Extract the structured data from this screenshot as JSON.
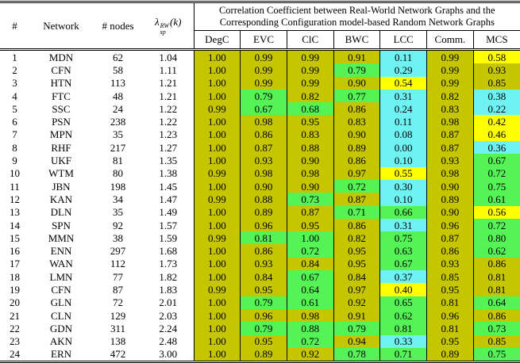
{
  "header": {
    "col_hash": "#",
    "col_network": "Network",
    "col_nodes": "# nodes",
    "lambda": {
      "symbol": "λ",
      "sup": "RW",
      "sub": "sp",
      "arg": "(k)"
    },
    "group_title_line1": "Correlation Coefficient between Real-World Network Graphs and the",
    "group_title_line2": "Corresponding Configuration model-based Random Network Graphs",
    "metrics": [
      "DegC",
      "EVC",
      "ClC",
      "BWC",
      "LCC",
      "Comm.",
      "MCS"
    ]
  },
  "palette": {
    "olive": "#c6c600",
    "green": "#55f355",
    "yellow": "#ffff00",
    "cyan": "#6ef2f2"
  },
  "chart_data": {
    "type": "table",
    "title": "Correlation Coefficient between Real-World Network Graphs and the Corresponding Configuration model-based Random Network Graphs",
    "columns": [
      "#",
      "Network",
      "# nodes",
      "λsp RW (k)",
      "DegC",
      "EVC",
      "ClC",
      "BWC",
      "LCC",
      "Comm.",
      "MCS"
    ],
    "rows": [
      {
        "num": "1",
        "network": "MDN",
        "nodes": "62",
        "lambda": "1.04",
        "values": [
          "1.00",
          "0.99",
          "0.99",
          "0.91",
          "0.11",
          "0.99",
          "0.58"
        ],
        "colors": [
          "olive",
          "olive",
          "olive",
          "olive",
          "cyan",
          "olive",
          "yellow"
        ]
      },
      {
        "num": "2",
        "network": "CFN",
        "nodes": "58",
        "lambda": "1.11",
        "values": [
          "1.00",
          "0.99",
          "0.99",
          "0.79",
          "0.29",
          "0.99",
          "0.93"
        ],
        "colors": [
          "olive",
          "olive",
          "olive",
          "green",
          "cyan",
          "olive",
          "olive"
        ]
      },
      {
        "num": "3",
        "network": "HTN",
        "nodes": "113",
        "lambda": "1.21",
        "values": [
          "1.00",
          "0.99",
          "0.99",
          "0.90",
          "0.54",
          "0.99",
          "0.85"
        ],
        "colors": [
          "olive",
          "olive",
          "olive",
          "olive",
          "yellow",
          "olive",
          "olive"
        ]
      },
      {
        "num": "4",
        "network": "FTC",
        "nodes": "48",
        "lambda": "1.21",
        "values": [
          "1.00",
          "0.79",
          "0.82",
          "0.77",
          "0.31",
          "0.82",
          "0.38"
        ],
        "colors": [
          "olive",
          "green",
          "olive",
          "green",
          "cyan",
          "olive",
          "cyan"
        ]
      },
      {
        "num": "5",
        "network": "SSC",
        "nodes": "24",
        "lambda": "1.22",
        "values": [
          "0.99",
          "0.67",
          "0.68",
          "0.86",
          "0.24",
          "0.83",
          "0.22"
        ],
        "colors": [
          "olive",
          "green",
          "green",
          "olive",
          "cyan",
          "olive",
          "cyan"
        ]
      },
      {
        "num": "6",
        "network": "PSN",
        "nodes": "238",
        "lambda": "1.22",
        "values": [
          "1.00",
          "0.98",
          "0.95",
          "0.83",
          "0.11",
          "0.98",
          "0.42"
        ],
        "colors": [
          "olive",
          "olive",
          "olive",
          "olive",
          "cyan",
          "olive",
          "yellow"
        ]
      },
      {
        "num": "7",
        "network": "MPN",
        "nodes": "35",
        "lambda": "1.23",
        "values": [
          "1.00",
          "0.86",
          "0.83",
          "0.90",
          "0.08",
          "0.87",
          "0.46"
        ],
        "colors": [
          "olive",
          "olive",
          "olive",
          "olive",
          "cyan",
          "olive",
          "yellow"
        ]
      },
      {
        "num": "8",
        "network": "RHF",
        "nodes": "217",
        "lambda": "1.27",
        "values": [
          "1.00",
          "0.87",
          "0.88",
          "0.89",
          "0.00",
          "0.87",
          "0.36"
        ],
        "colors": [
          "olive",
          "olive",
          "olive",
          "olive",
          "cyan",
          "olive",
          "cyan"
        ]
      },
      {
        "num": "9",
        "network": "UKF",
        "nodes": "81",
        "lambda": "1.35",
        "values": [
          "1.00",
          "0.93",
          "0.90",
          "0.86",
          "0.10",
          "0.93",
          "0.67"
        ],
        "colors": [
          "olive",
          "olive",
          "olive",
          "olive",
          "cyan",
          "olive",
          "green"
        ]
      },
      {
        "num": "10",
        "network": "WTM",
        "nodes": "80",
        "lambda": "1.38",
        "values": [
          "0.99",
          "0.98",
          "0.98",
          "0.97",
          "0.55",
          "0.98",
          "0.72"
        ],
        "colors": [
          "olive",
          "olive",
          "olive",
          "olive",
          "yellow",
          "olive",
          "green"
        ]
      },
      {
        "num": "11",
        "network": "JBN",
        "nodes": "198",
        "lambda": "1.45",
        "values": [
          "1.00",
          "0.90",
          "0.90",
          "0.72",
          "0.30",
          "0.90",
          "0.75"
        ],
        "colors": [
          "olive",
          "olive",
          "olive",
          "green",
          "cyan",
          "olive",
          "green"
        ]
      },
      {
        "num": "12",
        "network": "KAN",
        "nodes": "34",
        "lambda": "1.47",
        "values": [
          "0.99",
          "0.88",
          "0.73",
          "0.87",
          "0.10",
          "0.89",
          "0.61"
        ],
        "colors": [
          "olive",
          "olive",
          "green",
          "olive",
          "cyan",
          "olive",
          "green"
        ]
      },
      {
        "num": "13",
        "network": "DLN",
        "nodes": "35",
        "lambda": "1.49",
        "values": [
          "1.00",
          "0.89",
          "0.87",
          "0.71",
          "0.66",
          "0.90",
          "0.56"
        ],
        "colors": [
          "olive",
          "olive",
          "olive",
          "green",
          "green",
          "olive",
          "yellow"
        ]
      },
      {
        "num": "14",
        "network": "SPN",
        "nodes": "92",
        "lambda": "1.57",
        "values": [
          "1.00",
          "0.96",
          "0.95",
          "0.86",
          "0.31",
          "0.96",
          "0.72"
        ],
        "colors": [
          "olive",
          "olive",
          "olive",
          "olive",
          "cyan",
          "olive",
          "green"
        ]
      },
      {
        "num": "15",
        "network": "MMN",
        "nodes": "38",
        "lambda": "1.59",
        "values": [
          "0.99",
          "0.81",
          "1.00",
          "0.82",
          "0.75",
          "0.87",
          "0.80"
        ],
        "colors": [
          "olive",
          "green",
          "green",
          "olive",
          "green",
          "olive",
          "green"
        ]
      },
      {
        "num": "16",
        "network": "ENN",
        "nodes": "297",
        "lambda": "1.68",
        "values": [
          "1.00",
          "0.86",
          "0.72",
          "0.95",
          "0.63",
          "0.86",
          "0.62"
        ],
        "colors": [
          "olive",
          "olive",
          "green",
          "olive",
          "green",
          "olive",
          "green"
        ]
      },
      {
        "num": "17",
        "network": "WAN",
        "nodes": "112",
        "lambda": "1.73",
        "values": [
          "1.00",
          "0.93",
          "0.84",
          "0.95",
          "0.67",
          "0.93",
          "0.86"
        ],
        "colors": [
          "olive",
          "olive",
          "olive",
          "olive",
          "green",
          "olive",
          "olive"
        ]
      },
      {
        "num": "18",
        "network": "LMN",
        "nodes": "77",
        "lambda": "1.82",
        "values": [
          "1.00",
          "0.84",
          "0.67",
          "0.84",
          "0.37",
          "0.85",
          "0.81"
        ],
        "colors": [
          "olive",
          "olive",
          "green",
          "olive",
          "cyan",
          "olive",
          "olive"
        ]
      },
      {
        "num": "19",
        "network": "CFN",
        "nodes": "87",
        "lambda": "1.83",
        "values": [
          "0.99",
          "0.95",
          "0.64",
          "0.97",
          "0.40",
          "0.95",
          "0.81"
        ],
        "colors": [
          "olive",
          "olive",
          "green",
          "olive",
          "yellow",
          "olive",
          "olive"
        ]
      },
      {
        "num": "20",
        "network": "GLN",
        "nodes": "72",
        "lambda": "2.01",
        "values": [
          "1.00",
          "0.79",
          "0.61",
          "0.92",
          "0.65",
          "0.81",
          "0.64"
        ],
        "colors": [
          "olive",
          "green",
          "green",
          "olive",
          "green",
          "olive",
          "green"
        ]
      },
      {
        "num": "21",
        "network": "CLN",
        "nodes": "129",
        "lambda": "2.03",
        "values": [
          "1.00",
          "0.96",
          "0.98",
          "0.91",
          "0.62",
          "0.96",
          "0.86"
        ],
        "colors": [
          "olive",
          "olive",
          "olive",
          "olive",
          "green",
          "olive",
          "olive"
        ]
      },
      {
        "num": "22",
        "network": "GDN",
        "nodes": "311",
        "lambda": "2.24",
        "values": [
          "1.00",
          "0.79",
          "0.88",
          "0.79",
          "0.81",
          "0.81",
          "0.73"
        ],
        "colors": [
          "olive",
          "green",
          "green",
          "green",
          "green",
          "olive",
          "green"
        ]
      },
      {
        "num": "23",
        "network": "AKN",
        "nodes": "138",
        "lambda": "2.48",
        "values": [
          "1.00",
          "0.95",
          "0.72",
          "0.94",
          "0.33",
          "0.95",
          "0.85"
        ],
        "colors": [
          "olive",
          "olive",
          "green",
          "olive",
          "cyan",
          "olive",
          "olive"
        ]
      },
      {
        "num": "24",
        "network": "ERN",
        "nodes": "472",
        "lambda": "3.00",
        "values": [
          "1.00",
          "0.89",
          "0.92",
          "0.78",
          "0.71",
          "0.89",
          "0.75"
        ],
        "colors": [
          "olive",
          "olive",
          "olive",
          "green",
          "green",
          "olive",
          "green"
        ]
      }
    ]
  }
}
